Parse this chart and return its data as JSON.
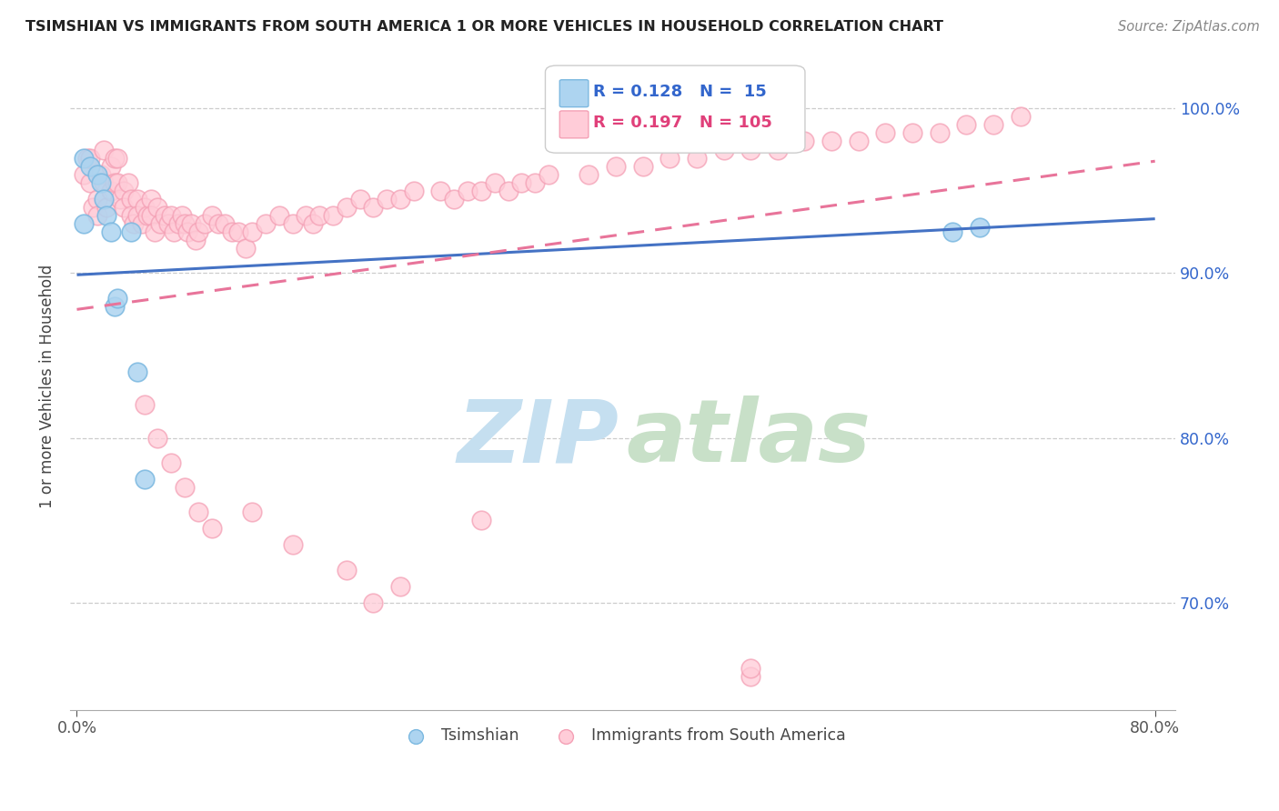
{
  "title": "TSIMSHIAN VS IMMIGRANTS FROM SOUTH AMERICA 1 OR MORE VEHICLES IN HOUSEHOLD CORRELATION CHART",
  "source": "Source: ZipAtlas.com",
  "ylabel": "1 or more Vehicles in Household",
  "y_tick_labels": [
    "70.0%",
    "80.0%",
    "90.0%",
    "100.0%"
  ],
  "y_tick_values": [
    0.7,
    0.8,
    0.9,
    1.0
  ],
  "xlim": [
    -0.005,
    0.815
  ],
  "ylim": [
    0.635,
    1.028
  ],
  "legend_blue_r": "R = 0.128",
  "legend_blue_n": "N =  15",
  "legend_pink_r": "R = 0.197",
  "legend_pink_n": "N = 105",
  "blue_fill": "#ADD4F0",
  "blue_edge": "#7BB8E0",
  "pink_fill": "#FFCCD8",
  "pink_edge": "#F4A0B5",
  "trend_blue_color": "#4472C4",
  "trend_pink_color": "#E8749A",
  "blue_scatter_x": [
    0.005,
    0.01,
    0.015,
    0.018,
    0.02,
    0.022,
    0.025,
    0.028,
    0.03,
    0.04,
    0.045,
    0.05,
    0.65,
    0.67,
    0.005
  ],
  "blue_scatter_y": [
    0.97,
    0.965,
    0.96,
    0.955,
    0.945,
    0.935,
    0.925,
    0.88,
    0.885,
    0.925,
    0.84,
    0.775,
    0.925,
    0.928,
    0.93
  ],
  "pink_scatter_x": [
    0.005,
    0.008,
    0.01,
    0.01,
    0.012,
    0.015,
    0.015,
    0.018,
    0.02,
    0.02,
    0.022,
    0.025,
    0.025,
    0.028,
    0.028,
    0.03,
    0.03,
    0.032,
    0.035,
    0.035,
    0.038,
    0.04,
    0.04,
    0.042,
    0.045,
    0.045,
    0.048,
    0.05,
    0.052,
    0.055,
    0.055,
    0.058,
    0.06,
    0.062,
    0.065,
    0.068,
    0.07,
    0.072,
    0.075,
    0.078,
    0.08,
    0.082,
    0.085,
    0.088,
    0.09,
    0.095,
    0.1,
    0.105,
    0.11,
    0.115,
    0.12,
    0.125,
    0.13,
    0.14,
    0.15,
    0.16,
    0.17,
    0.175,
    0.18,
    0.19,
    0.2,
    0.21,
    0.22,
    0.23,
    0.24,
    0.25,
    0.27,
    0.28,
    0.29,
    0.3,
    0.31,
    0.32,
    0.33,
    0.34,
    0.35,
    0.38,
    0.4,
    0.42,
    0.44,
    0.46,
    0.48,
    0.5,
    0.52,
    0.54,
    0.56,
    0.58,
    0.6,
    0.62,
    0.64,
    0.66,
    0.68,
    0.7,
    0.2,
    0.24,
    0.1,
    0.08,
    0.06,
    0.05,
    0.5,
    0.5,
    0.22,
    0.3,
    0.13,
    0.16,
    0.09,
    0.07
  ],
  "pink_scatter_y": [
    0.96,
    0.97,
    0.97,
    0.955,
    0.94,
    0.945,
    0.935,
    0.96,
    0.975,
    0.955,
    0.94,
    0.965,
    0.95,
    0.97,
    0.955,
    0.97,
    0.955,
    0.945,
    0.95,
    0.94,
    0.955,
    0.945,
    0.935,
    0.93,
    0.945,
    0.935,
    0.93,
    0.94,
    0.935,
    0.945,
    0.935,
    0.925,
    0.94,
    0.93,
    0.935,
    0.93,
    0.935,
    0.925,
    0.93,
    0.935,
    0.93,
    0.925,
    0.93,
    0.92,
    0.925,
    0.93,
    0.935,
    0.93,
    0.93,
    0.925,
    0.925,
    0.915,
    0.925,
    0.93,
    0.935,
    0.93,
    0.935,
    0.93,
    0.935,
    0.935,
    0.94,
    0.945,
    0.94,
    0.945,
    0.945,
    0.95,
    0.95,
    0.945,
    0.95,
    0.95,
    0.955,
    0.95,
    0.955,
    0.955,
    0.96,
    0.96,
    0.965,
    0.965,
    0.97,
    0.97,
    0.975,
    0.975,
    0.975,
    0.98,
    0.98,
    0.98,
    0.985,
    0.985,
    0.985,
    0.99,
    0.99,
    0.995,
    0.72,
    0.71,
    0.745,
    0.77,
    0.8,
    0.82,
    0.655,
    0.66,
    0.7,
    0.75,
    0.755,
    0.735,
    0.755,
    0.785
  ],
  "trend_blue_x0": 0.0,
  "trend_blue_x1": 0.8,
  "trend_blue_y0": 0.899,
  "trend_blue_y1": 0.933,
  "trend_pink_x0": 0.0,
  "trend_pink_x1": 0.8,
  "trend_pink_y0": 0.878,
  "trend_pink_y1": 0.968
}
